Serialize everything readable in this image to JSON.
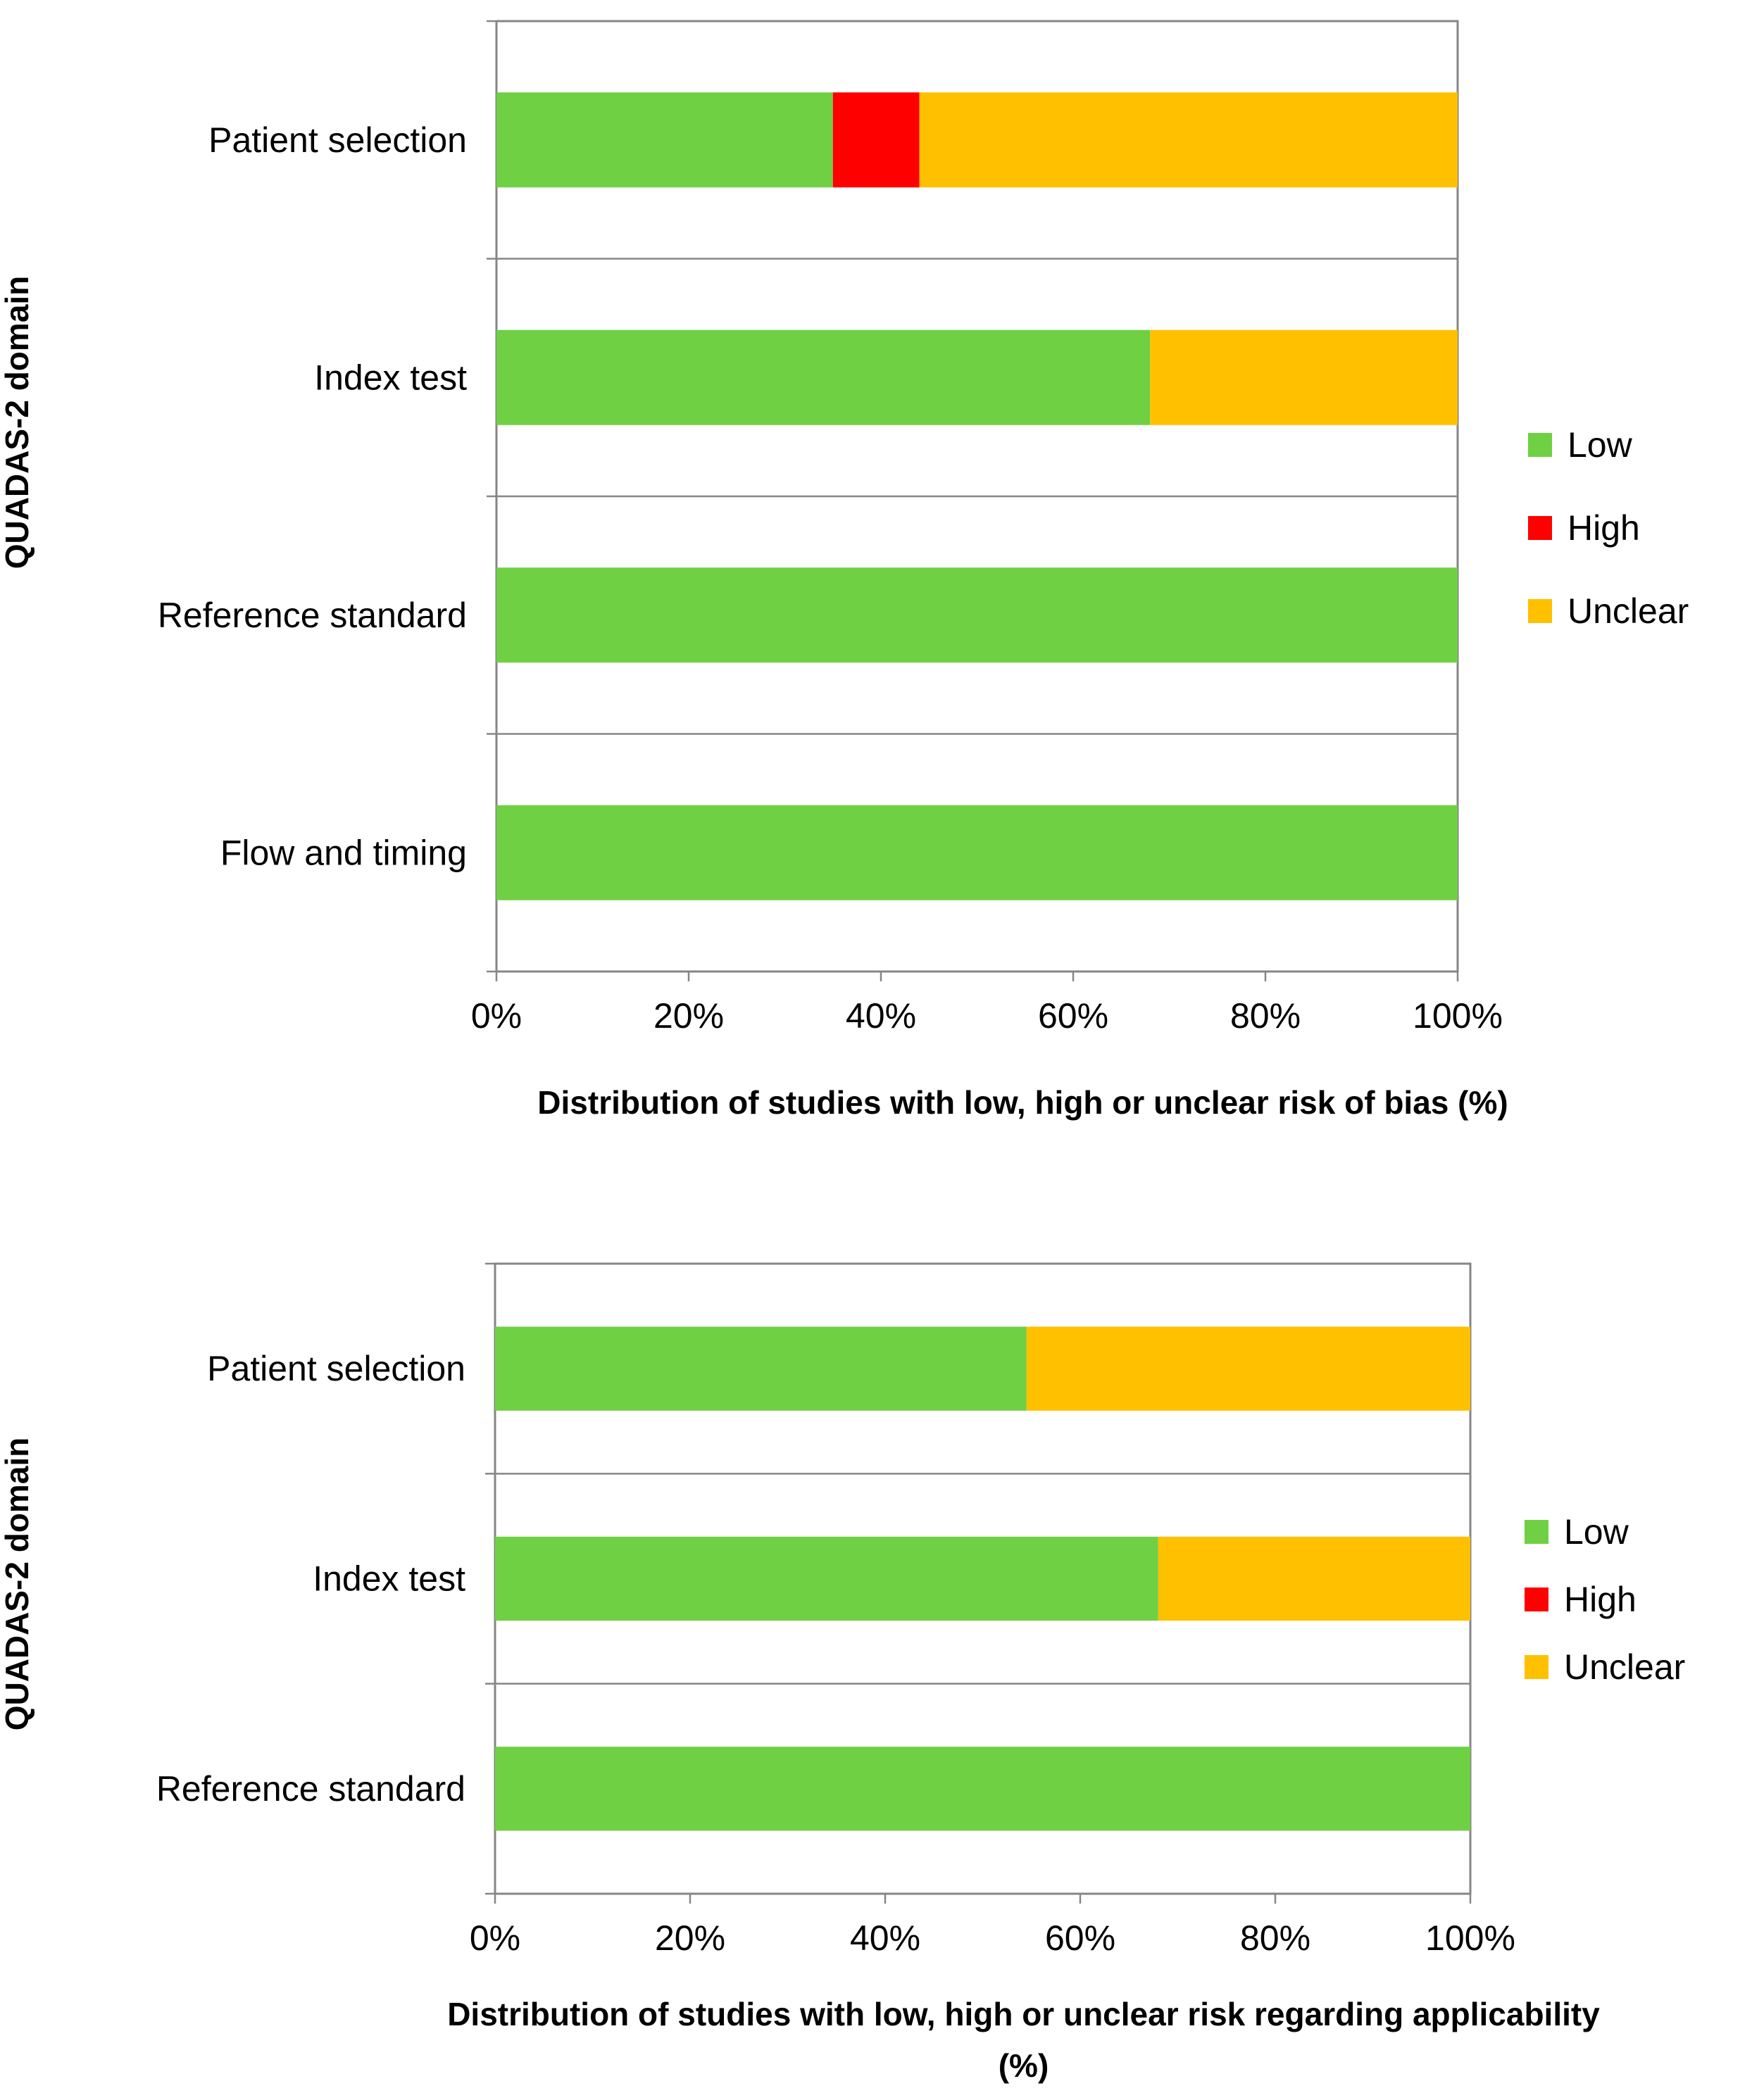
{
  "chart_data": [
    {
      "type": "bar",
      "orientation": "horizontal",
      "stacked": true,
      "percent": true,
      "categories": [
        "Patient selection",
        "Index test",
        "Reference standard",
        "Flow and timing"
      ],
      "series": [
        {
          "name": "Low",
          "color": "#6fd044",
          "values": [
            35,
            68,
            100,
            100
          ]
        },
        {
          "name": "High",
          "color": "#ff0000",
          "values": [
            9,
            0,
            0,
            0
          ]
        },
        {
          "name": "Unclear",
          "color": "#ffc000",
          "values": [
            56,
            32,
            0,
            0
          ]
        }
      ],
      "xlabel": "Distribution of studies with low, high or unclear risk of bias (%)",
      "ylabel": "QUADAS-2 domain",
      "xticks": [
        "0%",
        "20%",
        "40%",
        "60%",
        "80%",
        "100%"
      ],
      "xlim": [
        0,
        100
      ],
      "legend_position": "right",
      "grid": "horizontal category separators"
    },
    {
      "type": "bar",
      "orientation": "horizontal",
      "stacked": true,
      "percent": true,
      "categories": [
        "Patient selection",
        "Index test",
        "Reference standard"
      ],
      "series": [
        {
          "name": "Low",
          "color": "#6fd044",
          "values": [
            54.5,
            68,
            100
          ]
        },
        {
          "name": "High",
          "color": "#ff0000",
          "values": [
            0,
            0,
            0
          ]
        },
        {
          "name": "Unclear",
          "color": "#ffc000",
          "values": [
            45.5,
            32,
            0
          ]
        }
      ],
      "xlabel": [
        "Distribution of studies with low, high or unclear risk regarding applicability",
        "(%)"
      ],
      "ylabel": "QUADAS-2 domain",
      "xticks": [
        "0%",
        "20%",
        "40%",
        "60%",
        "80%",
        "100%"
      ],
      "xlim": [
        0,
        100
      ],
      "legend_position": "right",
      "grid": "horizontal category separators"
    }
  ]
}
